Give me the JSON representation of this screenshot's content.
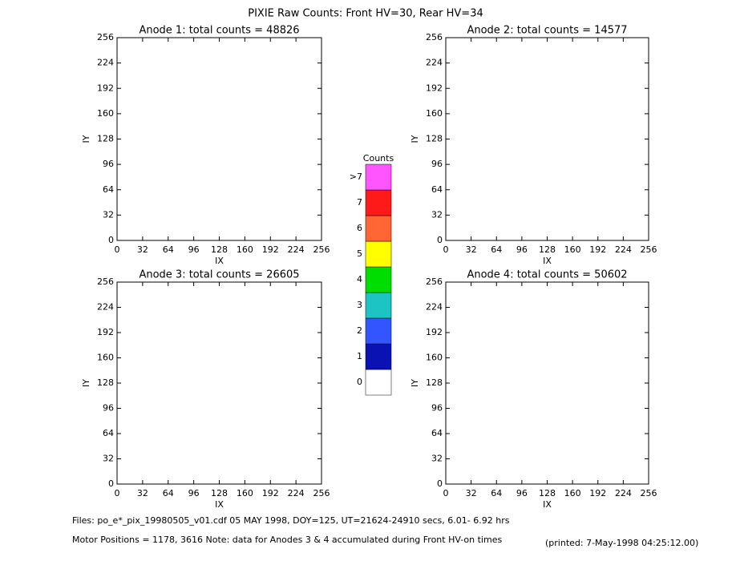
{
  "header": {
    "title": "PIXIE Raw Counts:  Front HV=30, Rear HV=34"
  },
  "chart_data": [
    {
      "type": "heatmap",
      "title": "Anode 1: total counts = 48826",
      "xlabel": "IX",
      "ylabel": "IY",
      "xlim": [
        0,
        256
      ],
      "ylim": [
        0,
        256
      ],
      "xticks": [
        0,
        32,
        64,
        96,
        128,
        160,
        192,
        224,
        256
      ],
      "yticks": [
        0,
        32,
        64,
        96,
        128,
        160,
        192,
        224,
        256
      ]
    },
    {
      "type": "heatmap",
      "title": "Anode 2: total counts = 14577",
      "xlabel": "IX",
      "ylabel": "IY",
      "xlim": [
        0,
        256
      ],
      "ylim": [
        0,
        256
      ],
      "xticks": [
        0,
        32,
        64,
        96,
        128,
        160,
        192,
        224,
        256
      ],
      "yticks": [
        0,
        32,
        64,
        96,
        128,
        160,
        192,
        224,
        256
      ]
    },
    {
      "type": "heatmap",
      "title": "Anode 3: total counts = 26605",
      "xlabel": "IX",
      "ylabel": "IY",
      "xlim": [
        0,
        256
      ],
      "ylim": [
        0,
        256
      ],
      "xticks": [
        0,
        32,
        64,
        96,
        128,
        160,
        192,
        224,
        256
      ],
      "yticks": [
        0,
        32,
        64,
        96,
        128,
        160,
        192,
        224,
        256
      ]
    },
    {
      "type": "heatmap",
      "title": "Anode 4: total counts = 50602",
      "xlabel": "IX",
      "ylabel": "IY",
      "xlim": [
        0,
        256
      ],
      "ylim": [
        0,
        256
      ],
      "xticks": [
        0,
        32,
        64,
        96,
        128,
        160,
        192,
        224,
        256
      ],
      "yticks": [
        0,
        32,
        64,
        96,
        128,
        160,
        192,
        224,
        256
      ]
    }
  ],
  "colorbar": {
    "title": "Counts",
    "levels": [
      {
        "value": 0,
        "color": "#ffffff"
      },
      {
        "value": 1,
        "color": "#0a12b4"
      },
      {
        "value": 2,
        "color": "#3355ff"
      },
      {
        "value": 3,
        "color": "#1cc4c4"
      },
      {
        "value": 4,
        "color": "#00dd00"
      },
      {
        "value": 5,
        "color": "#ffff00"
      },
      {
        "value": 6,
        "color": "#ff6633"
      },
      {
        "value": 7,
        "color": "#ff1a1a"
      },
      {
        "value": 8,
        "label": ">7",
        "color": "#ff55ff"
      }
    ]
  },
  "footer": {
    "files": "Files: po_e*_pix_19980505_v01.cdf    05 MAY 1998, DOY=125, UT=21624-24910 secs,  6.01- 6.92 hrs",
    "motor": "Motor Positions = 1178, 3616    Note: data for Anodes 3 & 4 accumulated during Front HV-on times",
    "printed": "(printed:  7-May-1998 04:25:12.00)"
  }
}
